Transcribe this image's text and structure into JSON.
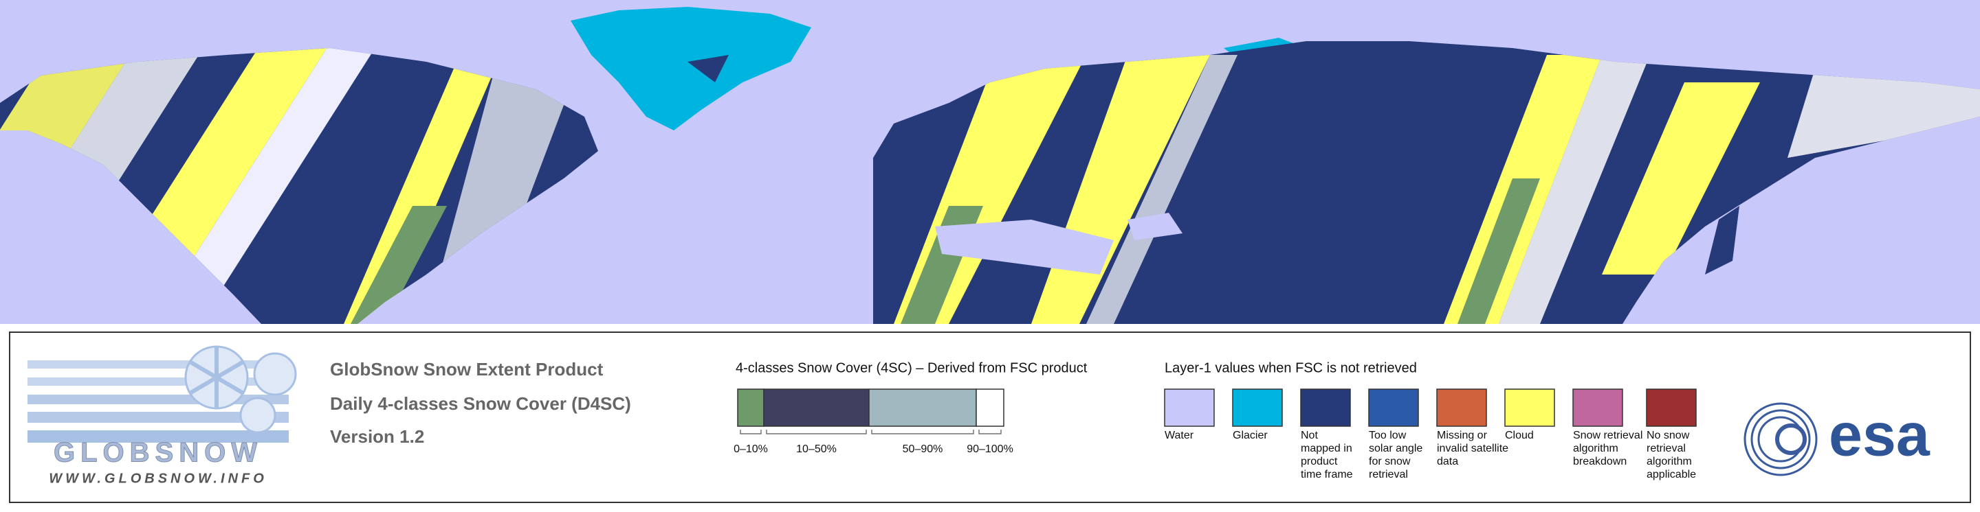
{
  "logo": {
    "name": "GLOBSNOW",
    "url": "WWW.GLOBSNOW.INFO"
  },
  "product": {
    "lines": [
      "GlobSnow Snow Extent Product",
      "Daily 4-classes Snow Cover (D4SC)",
      "Version 1.2"
    ]
  },
  "snow_cover_legend": {
    "title": "4-classes Snow Cover (4SC) – Derived from FSC product",
    "classes": [
      {
        "label": "0–10%",
        "color": "#6f9a6a"
      },
      {
        "label": "10–50%",
        "color": "#3f3f60"
      },
      {
        "label": "50–90%",
        "color": "#a0b8c0"
      },
      {
        "label": "90–100%",
        "color": "#ffffff"
      }
    ]
  },
  "layer1_legend": {
    "title": "Layer-1 values when FSC is not retrieved",
    "items": [
      {
        "label_lines": [
          "Water"
        ],
        "color": "#c8c8fa"
      },
      {
        "label_lines": [
          "Glacier"
        ],
        "color": "#00b4e0"
      },
      {
        "label_lines": [
          "Not",
          "mapped in",
          "product",
          "time frame"
        ],
        "color": "#263a7a"
      },
      {
        "label_lines": [
          "Too low",
          "solar angle",
          "for snow",
          "retrieval"
        ],
        "color": "#2b5aa8"
      },
      {
        "label_lines": [
          "Missing or",
          "invalid satellite",
          "data"
        ],
        "color": "#d0623e"
      },
      {
        "label_lines": [
          "Cloud"
        ],
        "color": "#ffff66"
      },
      {
        "label_lines": [
          "Snow retrieval",
          "algorithm",
          "breakdown"
        ],
        "color": "#c0689e"
      },
      {
        "label_lines": [
          "No snow",
          "retrieval",
          "algorithm",
          "applicable"
        ],
        "color": "#9c2f30"
      }
    ]
  },
  "esa_logo": "esa"
}
